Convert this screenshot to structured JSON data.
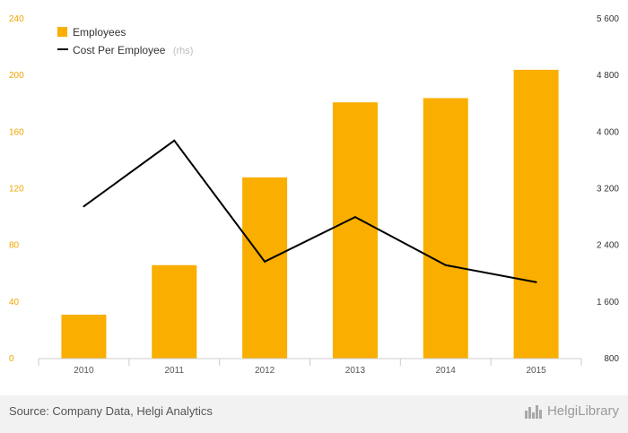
{
  "chart_data": {
    "type": "bar+line",
    "categories": [
      "2010",
      "2011",
      "2012",
      "2013",
      "2014",
      "2015"
    ],
    "series": [
      {
        "name": "Employees",
        "type": "bar",
        "axis": "left",
        "color": "#f9ae00",
        "values": [
          31,
          66,
          128,
          181,
          184,
          204
        ]
      },
      {
        "name": "Cost Per Employee",
        "name_suffix": "(rhs)",
        "type": "line",
        "axis": "right",
        "color": "#000000",
        "values": [
          2950,
          3880,
          2170,
          2800,
          2120,
          1880
        ]
      }
    ],
    "left_axis": {
      "ylim": [
        0,
        240
      ],
      "ticks": [
        "0",
        "40",
        "80",
        "120",
        "160",
        "200",
        "240"
      ],
      "color": "#f0a500"
    },
    "right_axis": {
      "ylim": [
        800,
        5600
      ],
      "ticks": [
        "800",
        "1 600",
        "2 400",
        "3 200",
        "4 000",
        "4 800",
        "5 600"
      ]
    },
    "legend_position": "top-left",
    "grid": false
  },
  "footer": {
    "source": "Source: Company Data, Helgi Analytics",
    "brand": "HelgiLibrary",
    "brand_icon": "helgi-skyline-icon"
  }
}
